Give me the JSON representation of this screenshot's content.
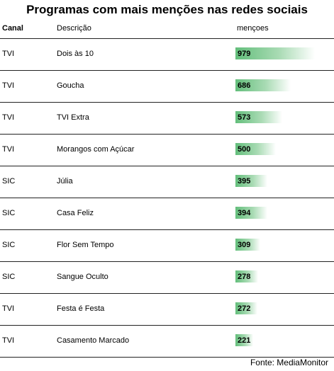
{
  "title": "Programas com mais menções nas redes sociais",
  "headers": {
    "canal": "Canal",
    "descricao": "Descrição",
    "mencoes": "mençoes"
  },
  "source": "Fonte: MediaMonitor",
  "colors": {
    "bar_start": "#63be7b",
    "bar_end": "#ffffff"
  },
  "chart_data": {
    "type": "table",
    "title": "Programas com mais menções nas redes sociais",
    "columns": [
      "Canal",
      "Descrição",
      "mençoes"
    ],
    "max_value": 979,
    "rows": [
      {
        "canal": "TVI",
        "descricao": "Dois às 10",
        "mencoes": 979
      },
      {
        "canal": "TVI",
        "descricao": "Goucha",
        "mencoes": 686
      },
      {
        "canal": "TVI",
        "descricao": "TVI Extra",
        "mencoes": 573
      },
      {
        "canal": "TVI",
        "descricao": "Morangos com Açúcar",
        "mencoes": 500
      },
      {
        "canal": "SIC",
        "descricao": "Júlia",
        "mencoes": 395
      },
      {
        "canal": "SIC",
        "descricao": "Casa Feliz",
        "mencoes": 394
      },
      {
        "canal": "SIC",
        "descricao": "Flor Sem Tempo",
        "mencoes": 309
      },
      {
        "canal": "SIC",
        "descricao": "Sangue Oculto",
        "mencoes": 278
      },
      {
        "canal": "TVI",
        "descricao": "Festa é Festa",
        "mencoes": 272
      },
      {
        "canal": "TVI",
        "descricao": "Casamento Marcado",
        "mencoes": 221
      }
    ]
  }
}
